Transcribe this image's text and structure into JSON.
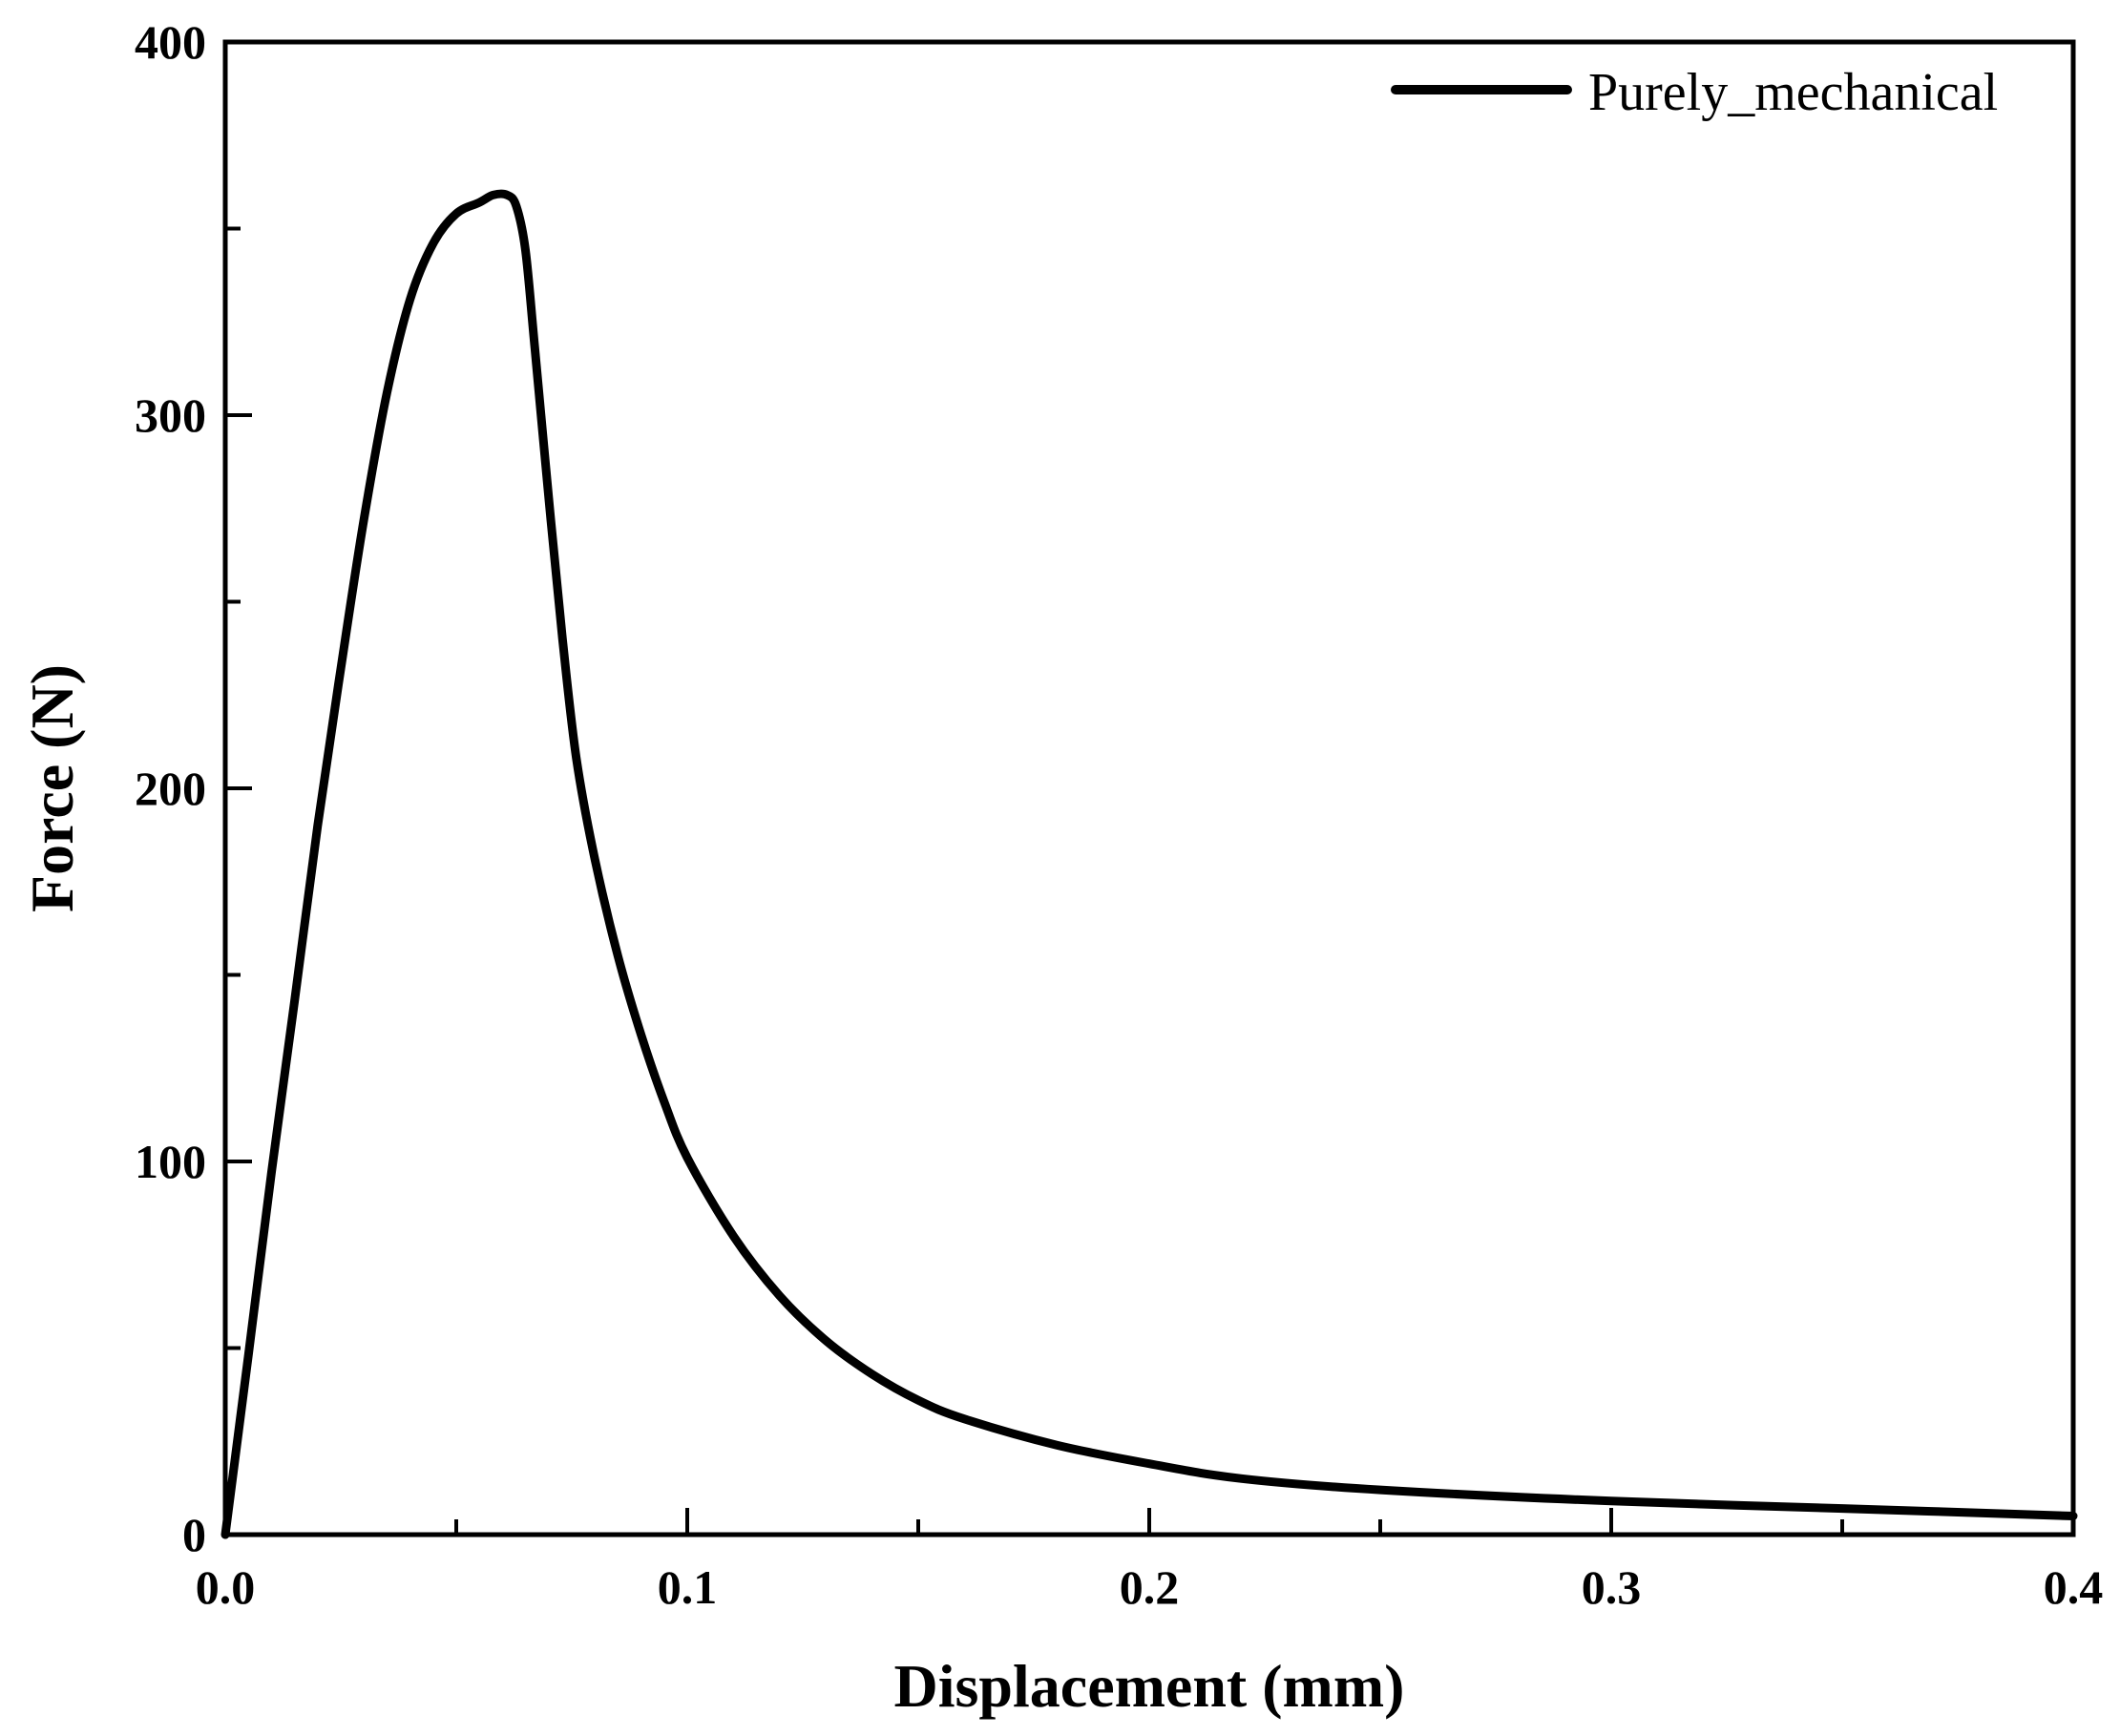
{
  "chart_data": {
    "type": "line",
    "title": "",
    "xlabel": "Displacement (mm)",
    "ylabel": "Force (N)",
    "xlim": [
      0,
      0.4
    ],
    "ylim": [
      0,
      400
    ],
    "x_ticks": [
      0.0,
      0.1,
      0.2,
      0.3,
      0.4
    ],
    "x_tick_labels": [
      "0.0",
      "0.1",
      "0.2",
      "0.3",
      "0.4"
    ],
    "x_minor_ticks": [
      0.05,
      0.15,
      0.25,
      0.35
    ],
    "y_ticks": [
      0,
      100,
      200,
      300,
      400
    ],
    "y_tick_labels": [
      "0",
      "100",
      "200",
      "300",
      "400"
    ],
    "y_minor_ticks": [
      50,
      150,
      250,
      350
    ],
    "grid": false,
    "legend": {
      "position": "top-right",
      "entries": [
        "Purely_mechanical"
      ]
    },
    "colors": {
      "line": "#000000"
    },
    "series": [
      {
        "name": "Purely_mechanical",
        "x": [
          0,
          0.005,
          0.01,
          0.015,
          0.02,
          0.025,
          0.03,
          0.035,
          0.04,
          0.045,
          0.05,
          0.055,
          0.058,
          0.061,
          0.063,
          0.065,
          0.067,
          0.07,
          0.073,
          0.076,
          0.08,
          0.085,
          0.09,
          0.095,
          0.1,
          0.11,
          0.12,
          0.13,
          0.14,
          0.15,
          0.16,
          0.18,
          0.2,
          0.22,
          0.25,
          0.3,
          0.35,
          0.4
        ],
        "y": [
          0,
          48,
          97,
          143,
          190,
          232,
          272,
          306,
          331,
          346,
          354,
          357,
          359,
          359,
          356,
          344,
          318,
          278,
          240,
          208,
          181,
          155,
          134,
          116,
          101,
          80,
          64,
          52,
          43,
          36,
          31,
          24,
          19,
          15,
          12,
          9,
          7,
          5
        ]
      }
    ]
  }
}
